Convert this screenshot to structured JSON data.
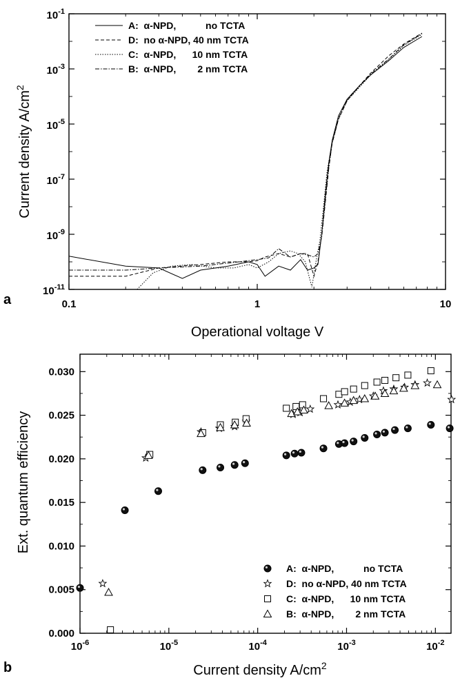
{
  "chart_data": [
    {
      "type": "line",
      "panel_label": "a",
      "xlabel": "Operational voltage V",
      "ylabel": "Current density A/cm",
      "ylabel_sup": "2",
      "xscale": "log",
      "yscale": "log",
      "xlim": [
        0.1,
        10
      ],
      "ylim": [
        1e-11,
        0.1
      ],
      "x_ticks": [
        {
          "value": 0.1,
          "label": "0.1"
        },
        {
          "value": 1,
          "label": "1"
        },
        {
          "value": 10,
          "label": "10"
        }
      ],
      "y_ticks": [
        {
          "value": 1e-11,
          "base": "10",
          "exp": "-11"
        },
        {
          "value": 1e-09,
          "base": "10",
          "exp": "-9"
        },
        {
          "value": 1e-07,
          "base": "10",
          "exp": "-7"
        },
        {
          "value": 1e-05,
          "base": "10",
          "exp": "-5"
        },
        {
          "value": 0.001,
          "base": "10",
          "exp": "-3"
        },
        {
          "value": 0.1,
          "base": "10",
          "exp": "-1"
        }
      ],
      "legend_position": "top-left",
      "series": [
        {
          "name": "A:  α-NPD,           no TCTA",
          "dash": "",
          "x": [
            0.1,
            0.2,
            0.3,
            0.4,
            0.5,
            0.7,
            0.9,
            1.0,
            1.1,
            1.3,
            1.5,
            1.7,
            1.85,
            2.0,
            2.1,
            2.2,
            2.3,
            2.4,
            2.5,
            2.7,
            3.0,
            3.5,
            4.0,
            5.0,
            6.0,
            7.5
          ],
          "y": [
            1.6e-10,
            7e-11,
            6e-11,
            2.5e-11,
            5e-11,
            7e-11,
            1e-10,
            8e-11,
            3e-11,
            7e-11,
            5e-11,
            1.2e-10,
            5e-11,
            6e-11,
            8e-11,
            1e-09,
            3e-08,
            4e-07,
            2.5e-06,
            2e-05,
            8e-05,
            0.00025,
            0.0006,
            0.002,
            0.006,
            0.015
          ]
        },
        {
          "name": "D:  no α-NPD, 40 nm TCTA",
          "dash": "5,3",
          "x": [
            0.1,
            0.2,
            0.3,
            0.5,
            0.7,
            0.9,
            1.0,
            1.1,
            1.3,
            1.5,
            1.7,
            1.85,
            2.0,
            2.1,
            2.2,
            2.3,
            2.4,
            2.5,
            2.7,
            3.0,
            3.5,
            4.0,
            5.0,
            6.0,
            7.5
          ],
          "y": [
            3e-11,
            3e-11,
            6e-11,
            8e-11,
            1e-10,
            1e-10,
            1.1e-10,
            1.5e-10,
            2e-10,
            1.5e-10,
            2e-10,
            2e-10,
            3e-11,
            1e-10,
            1e-09,
            2e-08,
            3e-07,
            2e-06,
            1.5e-05,
            7e-05,
            0.00025,
            0.0007,
            0.003,
            0.008,
            0.02
          ]
        },
        {
          "name": "C:  α-NPD,      10 nm TCTA",
          "dash": "1.5,2",
          "x": [
            0.23,
            0.28,
            0.35,
            0.45,
            0.6,
            0.75,
            0.9,
            1.0,
            1.15,
            1.3,
            1.5,
            1.65,
            1.8,
            1.95,
            2.05,
            2.15,
            2.25,
            2.35,
            2.5,
            2.7,
            3.0,
            3.5,
            4.0,
            5.0,
            6.0,
            7.5
          ],
          "y": [
            1e-11,
            4e-11,
            7e-11,
            8e-11,
            6e-11,
            6e-11,
            8e-11,
            6e-11,
            1e-10,
            2e-10,
            2.5e-10,
            2e-10,
            1e-10,
            1.2e-11,
            1e-10,
            6e-10,
            1e-08,
            2e-07,
            2e-06,
            1.5e-05,
            7e-05,
            0.00022,
            0.0006,
            0.0022,
            0.007,
            0.018
          ]
        },
        {
          "name": "B:  α-NPD,        2 nm TCTA",
          "dash": "6,2,1.5,2",
          "x": [
            0.1,
            0.2,
            0.3,
            0.5,
            0.7,
            0.9,
            1.0,
            1.15,
            1.3,
            1.5,
            1.7,
            1.9,
            2.0,
            2.1,
            2.2,
            2.3,
            2.4,
            2.5,
            2.7,
            3.0,
            3.5,
            4.0,
            5.0,
            6.0,
            7.5
          ],
          "y": [
            5e-11,
            5e-11,
            6e-11,
            7e-11,
            9e-11,
            1.1e-10,
            1.2e-10,
            1.4e-10,
            3e-10,
            1.5e-10,
            2e-10,
            1.7e-10,
            1.5e-10,
            2e-10,
            8e-10,
            1.5e-08,
            2.5e-07,
            2e-06,
            1.6e-05,
            7.5e-05,
            0.00024,
            0.00065,
            0.0023,
            0.0075,
            0.019
          ]
        }
      ]
    },
    {
      "type": "scatter",
      "panel_label": "b",
      "xlabel": "Current density A/cm",
      "xlabel_sup": "2",
      "ylabel": "Ext. quantum efficiency",
      "xscale": "log",
      "xlim": [
        1e-06,
        0.015
      ],
      "ylim": [
        0.0,
        0.032
      ],
      "x_ticks": [
        {
          "value": 1e-06,
          "base": "10",
          "exp": "-6"
        },
        {
          "value": 1e-05,
          "base": "10",
          "exp": "-5"
        },
        {
          "value": 0.0001,
          "base": "10",
          "exp": "-4"
        },
        {
          "value": 0.001,
          "base": "10",
          "exp": "-3"
        },
        {
          "value": 0.01,
          "base": "10",
          "exp": "-2"
        }
      ],
      "y_ticks": [
        "0.000",
        "0.005",
        "0.010",
        "0.015",
        "0.020",
        "0.025",
        "0.030"
      ],
      "legend_position": "bottom-right",
      "series": [
        {
          "name": "A:  α-NPD,           no TCTA",
          "marker": "filled-circle",
          "x": [
            1e-06,
            3.2e-06,
            7.6e-06,
            2.4e-05,
            3.8e-05,
            5.5e-05,
            7.2e-05,
            0.00021,
            0.00026,
            0.00031,
            0.00055,
            0.00082,
            0.00095,
            0.0012,
            0.0016,
            0.0022,
            0.0027,
            0.0035,
            0.0049,
            0.0089,
            0.0145
          ],
          "y": [
            0.0052,
            0.0141,
            0.0163,
            0.0187,
            0.019,
            0.0193,
            0.0195,
            0.0204,
            0.0206,
            0.0207,
            0.0212,
            0.0217,
            0.0218,
            0.022,
            0.0224,
            0.0228,
            0.023,
            0.0233,
            0.0235,
            0.0239,
            0.0235
          ]
        },
        {
          "name": "D:  no α-NPD, 40 nm TCTA",
          "marker": "open-star",
          "x": [
            1.8e-06,
            5.5e-06,
            2.3e-05,
            3.7e-05,
            5.5e-05,
            7.4e-05,
            0.00025,
            0.0003,
            0.00039,
            0.0008,
            0.0011,
            0.0014,
            0.002,
            0.0026,
            0.0034,
            0.0045,
            0.0059,
            0.0081,
            0.0152
          ],
          "y": [
            0.0057,
            0.0201,
            0.0231,
            0.0235,
            0.0237,
            0.0243,
            0.0251,
            0.0253,
            0.0257,
            0.0262,
            0.0265,
            0.0268,
            0.0272,
            0.0278,
            0.028,
            0.0282,
            0.0285,
            0.0287,
            0.0268
          ]
        },
        {
          "name": "C:  α-NPD,      10 nm TCTA",
          "marker": "open-square",
          "x": [
            2.2e-06,
            6.1e-06,
            2.4e-05,
            3.8e-05,
            5.6e-05,
            7.4e-05,
            0.00021,
            0.00027,
            0.00032,
            0.00055,
            0.00082,
            0.00095,
            0.0012,
            0.0016,
            0.0022,
            0.0027,
            0.0036,
            0.0049,
            0.0089
          ],
          "y": [
            0.0004,
            0.0205,
            0.023,
            0.0239,
            0.0242,
            0.0246,
            0.0258,
            0.026,
            0.0262,
            0.0269,
            0.0274,
            0.0277,
            0.028,
            0.0284,
            0.0288,
            0.029,
            0.0293,
            0.0296,
            0.0301
          ]
        },
        {
          "name": "B:  α-NPD,        2 nm TCTA",
          "marker": "open-triangle",
          "x": [
            2.1e-06,
            5.9e-06,
            2.3e-05,
            3.8e-05,
            5.5e-05,
            7.5e-05,
            0.00024,
            0.00028,
            0.00033,
            0.00063,
            0.00095,
            0.0012,
            0.0016,
            0.0021,
            0.0027,
            0.0034,
            0.0044,
            0.0059,
            0.0105
          ],
          "y": [
            0.0047,
            0.0204,
            0.0229,
            0.0236,
            0.0239,
            0.0241,
            0.0252,
            0.0254,
            0.0256,
            0.0261,
            0.0264,
            0.0267,
            0.0269,
            0.0272,
            0.0275,
            0.0278,
            0.0281,
            0.0284,
            0.0285
          ]
        }
      ]
    }
  ]
}
